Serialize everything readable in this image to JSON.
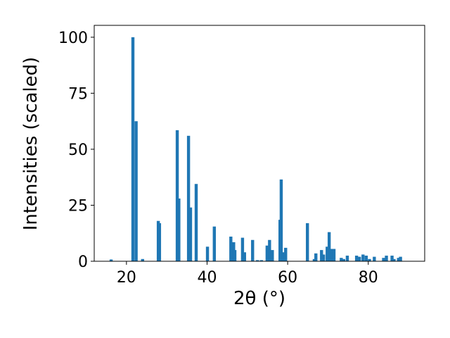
{
  "chart_data": {
    "type": "bar",
    "xlabel": "2θ (°)",
    "ylabel": "Intensities (scaled)",
    "color": "#1f77b4",
    "x": [
      16.2,
      21.6,
      22.4,
      24.0,
      27.9,
      28.2,
      32.6,
      33.0,
      35.4,
      35.9,
      37.3,
      40.1,
      41.8,
      45.9,
      46.6,
      46.9,
      48.8,
      49.3,
      51.3,
      52.5,
      53.5,
      54.9,
      55.5,
      56.2,
      58.1,
      58.4,
      58.8,
      59.5,
      64.9,
      66.6,
      67.0,
      68.4,
      68.9,
      69.8,
      70.3,
      70.8,
      71.5,
      73.3,
      73.9,
      74.8,
      77.1,
      77.8,
      78.7,
      79.5,
      80.3,
      81.5,
      83.8,
      84.5,
      85.9,
      86.4,
      87.5,
      88.0
    ],
    "values": [
      0.8,
      100,
      62.5,
      1,
      18,
      17,
      58.5,
      28,
      56,
      24,
      34.5,
      6.5,
      15.5,
      11,
      8.5,
      5,
      10.5,
      4,
      9.5,
      0.5,
      0.5,
      7,
      9.5,
      5,
      18.5,
      36.5,
      4,
      6,
      17,
      1,
      3.5,
      5,
      3,
      6.5,
      13,
      5.5,
      5.5,
      1.5,
      1,
      2.5,
      2.5,
      2,
      3,
      2.5,
      1,
      2,
      1.5,
      2.5,
      2.5,
      1,
      1.5,
      2
    ],
    "xlim": [
      12,
      94
    ],
    "ylim": [
      0,
      105.3
    ],
    "xticks": [
      20,
      40,
      60,
      80
    ],
    "yticks": [
      0,
      25,
      50,
      75,
      100
    ]
  }
}
